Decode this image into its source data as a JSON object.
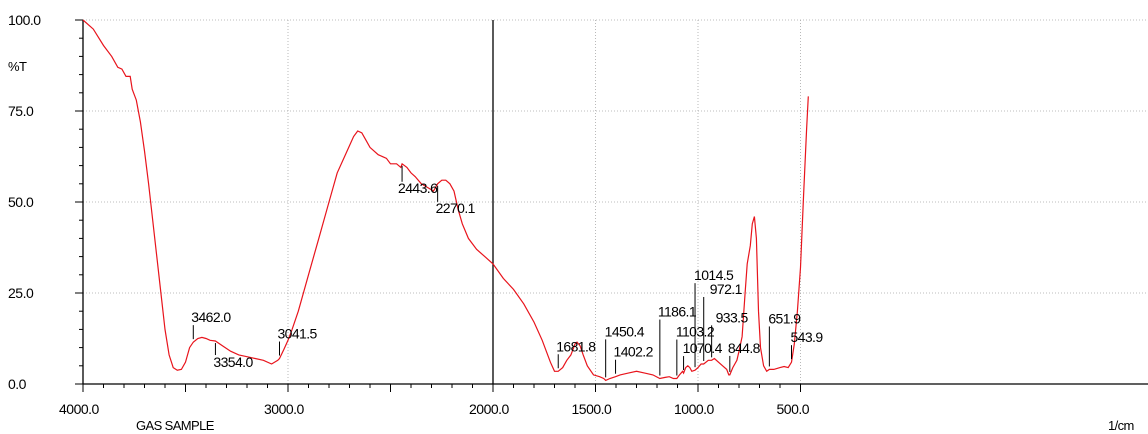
{
  "chart_data": {
    "type": "line",
    "ylabel": "%T",
    "xunit_label": "1/cm",
    "sample_label": "GAS SAMPLE",
    "xlim": [
      4000,
      462
    ],
    "ylim": [
      0,
      100
    ],
    "grid": true,
    "x_ticks": [
      4000,
      3000,
      2000,
      1500,
      1000,
      500
    ],
    "x_tick_labels": [
      "4000.0",
      "3000.0",
      "2000.0",
      "1500.0",
      "1000.0",
      "500.0"
    ],
    "y_ticks": [
      0,
      25,
      50,
      75,
      100
    ],
    "y_tick_labels": [
      "0.0",
      "25.0",
      "50.0",
      "75.0",
      "100.0"
    ],
    "divider_x": 2000,
    "line_color": "#e8141c",
    "series": [
      {
        "points": [
          [
            4000,
            100
          ],
          [
            3950,
            97.5
          ],
          [
            3900,
            93
          ],
          [
            3860,
            90
          ],
          [
            3830,
            87
          ],
          [
            3810,
            86.5
          ],
          [
            3790,
            84.5
          ],
          [
            3770,
            84.5
          ],
          [
            3760,
            81
          ],
          [
            3740,
            78
          ],
          [
            3720,
            72
          ],
          [
            3700,
            64
          ],
          [
            3680,
            55
          ],
          [
            3660,
            45
          ],
          [
            3640,
            35
          ],
          [
            3620,
            25
          ],
          [
            3600,
            15
          ],
          [
            3580,
            8
          ],
          [
            3560,
            4.5
          ],
          [
            3540,
            3.8
          ],
          [
            3520,
            4
          ],
          [
            3500,
            6
          ],
          [
            3480,
            10
          ],
          [
            3462,
            11.5
          ],
          [
            3440,
            12.5
          ],
          [
            3420,
            12.8
          ],
          [
            3400,
            12.5
          ],
          [
            3380,
            12
          ],
          [
            3354,
            11.8
          ],
          [
            3320,
            10.5
          ],
          [
            3280,
            9
          ],
          [
            3240,
            8
          ],
          [
            3200,
            7.5
          ],
          [
            3160,
            7
          ],
          [
            3120,
            6.5
          ],
          [
            3080,
            5.5
          ],
          [
            3050,
            6.5
          ],
          [
            3041.5,
            7
          ],
          [
            3020,
            9.5
          ],
          [
            3000,
            12
          ],
          [
            2980,
            15
          ],
          [
            2950,
            20
          ],
          [
            2900,
            30
          ],
          [
            2850,
            40
          ],
          [
            2800,
            50
          ],
          [
            2760,
            58
          ],
          [
            2720,
            63
          ],
          [
            2680,
            68
          ],
          [
            2660,
            69.5
          ],
          [
            2640,
            69
          ],
          [
            2620,
            67
          ],
          [
            2600,
            65
          ],
          [
            2560,
            63
          ],
          [
            2520,
            62
          ],
          [
            2500,
            60.5
          ],
          [
            2470,
            60.5
          ],
          [
            2450,
            59.5
          ],
          [
            2443.6,
            60.5
          ],
          [
            2420,
            59.5
          ],
          [
            2400,
            58
          ],
          [
            2380,
            57
          ],
          [
            2350,
            55
          ],
          [
            2320,
            54
          ],
          [
            2290,
            53
          ],
          [
            2270.1,
            55
          ],
          [
            2250,
            56
          ],
          [
            2230,
            56
          ],
          [
            2210,
            55
          ],
          [
            2190,
            53
          ],
          [
            2170,
            48
          ],
          [
            2150,
            44
          ],
          [
            2120,
            40
          ],
          [
            2080,
            37
          ],
          [
            2040,
            35
          ],
          [
            2000,
            33
          ],
          [
            1950,
            29
          ],
          [
            1900,
            26
          ],
          [
            1850,
            22
          ],
          [
            1800,
            17
          ],
          [
            1760,
            12
          ],
          [
            1720,
            6
          ],
          [
            1700,
            3.5
          ],
          [
            1681.8,
            3.5
          ],
          [
            1660,
            4.5
          ],
          [
            1640,
            6.5
          ],
          [
            1620,
            8
          ],
          [
            1600,
            11
          ],
          [
            1590,
            11.5
          ],
          [
            1575,
            10.5
          ],
          [
            1560,
            8
          ],
          [
            1540,
            5
          ],
          [
            1510,
            2.5
          ],
          [
            1480,
            2
          ],
          [
            1460,
            1.5
          ],
          [
            1450.4,
            1
          ],
          [
            1430,
            1.5
          ],
          [
            1402.2,
            2
          ],
          [
            1380,
            2.5
          ],
          [
            1340,
            3
          ],
          [
            1300,
            3.5
          ],
          [
            1260,
            3
          ],
          [
            1220,
            2.5
          ],
          [
            1186.1,
            1.5
          ],
          [
            1160,
            1.8
          ],
          [
            1140,
            2
          ],
          [
            1120,
            1.5
          ],
          [
            1103.2,
            1.5
          ],
          [
            1090,
            2.5
          ],
          [
            1075,
            3.5
          ],
          [
            1070.4,
            3
          ],
          [
            1060,
            4.5
          ],
          [
            1050,
            5
          ],
          [
            1040,
            4.5
          ],
          [
            1030,
            3.5
          ],
          [
            1014.5,
            3.8
          ],
          [
            1000,
            4.5
          ],
          [
            985,
            5.5
          ],
          [
            972.1,
            5.5
          ],
          [
            950,
            6.5
          ],
          [
            933.5,
            6.5
          ],
          [
            920,
            7
          ],
          [
            900,
            6
          ],
          [
            880,
            5
          ],
          [
            860,
            4
          ],
          [
            850,
            2.5
          ],
          [
            844.8,
            2.5
          ],
          [
            830,
            4.5
          ],
          [
            810,
            6.5
          ],
          [
            800,
            9
          ],
          [
            785,
            13
          ],
          [
            770,
            25
          ],
          [
            760,
            33
          ],
          [
            745,
            38
          ],
          [
            735,
            44
          ],
          [
            725,
            46
          ],
          [
            715,
            40
          ],
          [
            705,
            20
          ],
          [
            695,
            10
          ],
          [
            680,
            5
          ],
          [
            665,
            3.5
          ],
          [
            651.9,
            4
          ],
          [
            630,
            4
          ],
          [
            600,
            4.5
          ],
          [
            580,
            4.8
          ],
          [
            560,
            4.5
          ],
          [
            543.9,
            6
          ],
          [
            530,
            11
          ],
          [
            515,
            20
          ],
          [
            500,
            32
          ],
          [
            485,
            52
          ],
          [
            470,
            70
          ],
          [
            462,
            79
          ]
        ]
      }
    ],
    "peaks": [
      {
        "x": 3462,
        "label": "3462.0",
        "label_pos": "above"
      },
      {
        "x": 3354,
        "label": "3354.0",
        "label_pos": "below"
      },
      {
        "x": 3041.5,
        "label": "3041.5",
        "label_pos": "above"
      },
      {
        "x": 2443.6,
        "label": "2443.6",
        "label_pos": "below"
      },
      {
        "x": 2270.1,
        "label": "2270.1",
        "label_pos": "below"
      },
      {
        "x": 1681.8,
        "label": "1681.8",
        "label_pos": "above"
      },
      {
        "x": 1450.4,
        "label": "1450.4",
        "label_pos": "above"
      },
      {
        "x": 1402.2,
        "label": "1402.2",
        "label_pos": "above"
      },
      {
        "x": 1186.1,
        "label": "1186.1",
        "label_pos": "above"
      },
      {
        "x": 1103.2,
        "label": "1103.2",
        "label_pos": "above"
      },
      {
        "x": 1070.4,
        "label": "1070.4",
        "label_pos": "above"
      },
      {
        "x": 1014.5,
        "label": "1014.5",
        "label_pos": "above"
      },
      {
        "x": 972.1,
        "label": "972.1",
        "label_pos": "above"
      },
      {
        "x": 933.5,
        "label": "933.5",
        "label_pos": "above"
      },
      {
        "x": 844.8,
        "label": "844.8",
        "label_pos": "above"
      },
      {
        "x": 651.9,
        "label": "651.9",
        "label_pos": "above"
      },
      {
        "x": 543.9,
        "label": "543.9",
        "label_pos": "above"
      }
    ]
  }
}
